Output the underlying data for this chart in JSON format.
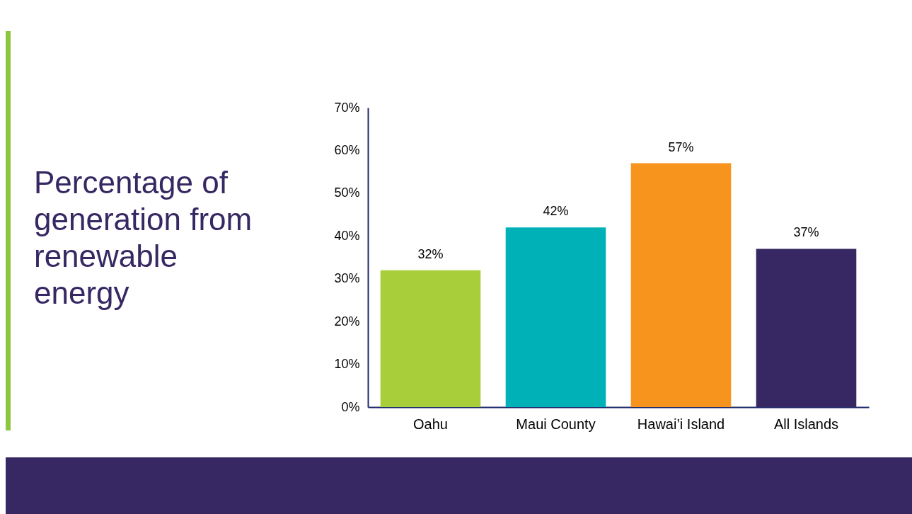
{
  "chart_data": {
    "type": "bar",
    "title": "Percentage of generation from renewable energy",
    "categories": [
      "Oahu",
      "Maui County",
      "Hawai’i Island",
      "All Islands"
    ],
    "values": [
      32,
      42,
      57,
      37
    ],
    "colors": [
      "#a8cf3a",
      "#00b2b8",
      "#f7941d",
      "#372863"
    ],
    "ylim": [
      0,
      70
    ],
    "yticks": [
      {
        "value": 0,
        "label": "0%"
      },
      {
        "value": 10,
        "label": "10%"
      },
      {
        "value": 20,
        "label": "20%"
      },
      {
        "value": 30,
        "label": "30%"
      },
      {
        "value": 40,
        "label": "40%"
      },
      {
        "value": 50,
        "label": "50%"
      },
      {
        "value": 60,
        "label": "60%"
      },
      {
        "value": 70,
        "label": "70%"
      }
    ],
    "value_labels": [
      "32%",
      "42%",
      "57%",
      "37%"
    ],
    "grid": false
  }
}
